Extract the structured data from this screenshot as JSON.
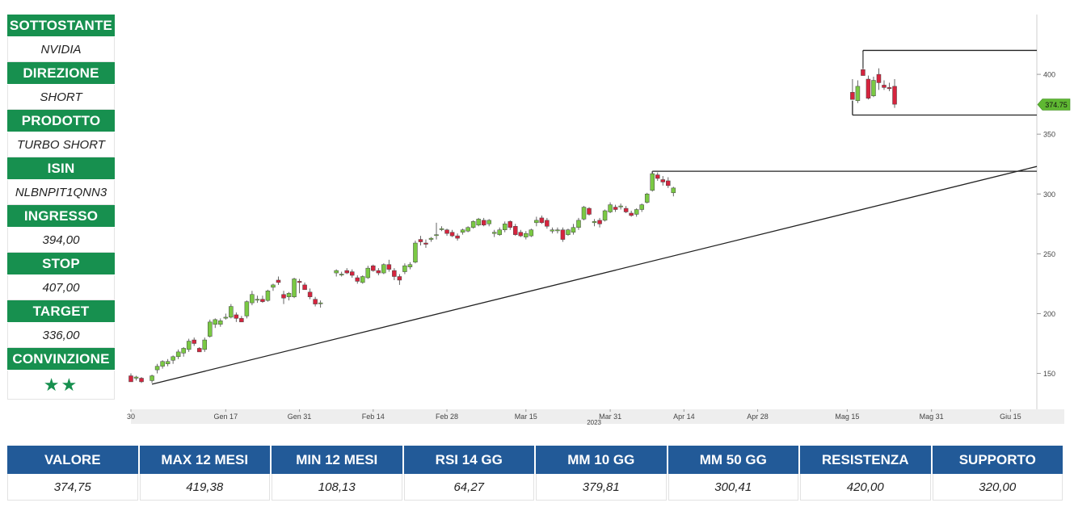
{
  "sidebar": [
    {
      "label": "SOTTOSTANTE",
      "value": "NVIDIA"
    },
    {
      "label": "DIREZIONE",
      "value": "SHORT"
    },
    {
      "label": "PRODOTTO",
      "value": "TURBO SHORT"
    },
    {
      "label": "ISIN",
      "value": "NLBNPIT1QNN3"
    },
    {
      "label": "INGRESSO",
      "value": "394,00"
    },
    {
      "label": "STOP",
      "value": "407,00"
    },
    {
      "label": "TARGET",
      "value": "336,00"
    },
    {
      "label": "CONVINZIONE",
      "value": "★★"
    }
  ],
  "stats": {
    "headers": [
      "VALORE",
      "MAX 12 MESI",
      "MIN 12 MESI",
      "RSI 14 GG",
      "MM 10 GG",
      "MM 50 GG",
      "RESISTENZA",
      "SUPPORTO"
    ],
    "values": [
      "374,75",
      "419,38",
      "108,13",
      "64,27",
      "379,81",
      "300,41",
      "420,00",
      "320,00"
    ]
  },
  "colors": {
    "up": "#7ac943",
    "down": "#d6243e",
    "green": "#17904f",
    "blue": "#225a98",
    "price_tag": "#5fb832"
  },
  "chart_data": {
    "type": "candlestick",
    "y_ticks": [
      150,
      200,
      250,
      300,
      350,
      400
    ],
    "ylim": [
      120,
      450
    ],
    "x_ticks": [
      {
        "label": "30",
        "day": 0
      },
      {
        "label": "Gen 17",
        "day": 18
      },
      {
        "label": "Gen 31",
        "day": 32
      },
      {
        "label": "Feb 14",
        "day": 46
      },
      {
        "label": "Feb 28",
        "day": 60
      },
      {
        "label": "Mar 15",
        "day": 75
      },
      {
        "label": "Mar 31",
        "day": 91
      },
      {
        "label": "Apr 14",
        "day": 105
      },
      {
        "label": "Apr 28",
        "day": 119
      },
      {
        "label": "Mag 15",
        "day": 136
      },
      {
        "label": "Mag 31",
        "day": 152
      },
      {
        "label": "Giu 15",
        "day": 167
      }
    ],
    "xlim": [
      0,
      172
    ],
    "year_label": "2023",
    "last_price": "374.75",
    "candles": [
      {
        "d": 0,
        "o": 148,
        "h": 150,
        "l": 143,
        "c": 143
      },
      {
        "d": 1,
        "o": 146,
        "h": 148,
        "l": 144,
        "c": 147
      },
      {
        "d": 2,
        "o": 146,
        "h": 147,
        "l": 142,
        "c": 143
      },
      {
        "d": 4,
        "o": 144,
        "h": 149,
        "l": 142,
        "c": 148
      },
      {
        "d": 5,
        "o": 153,
        "h": 158,
        "l": 150,
        "c": 156
      },
      {
        "d": 6,
        "o": 156,
        "h": 161,
        "l": 154,
        "c": 160
      },
      {
        "d": 7,
        "o": 158,
        "h": 162,
        "l": 156,
        "c": 160
      },
      {
        "d": 8,
        "o": 161,
        "h": 165,
        "l": 158,
        "c": 164
      },
      {
        "d": 9,
        "o": 164,
        "h": 170,
        "l": 162,
        "c": 168
      },
      {
        "d": 10,
        "o": 167,
        "h": 172,
        "l": 164,
        "c": 171
      },
      {
        "d": 11,
        "o": 170,
        "h": 179,
        "l": 168,
        "c": 177
      },
      {
        "d": 12,
        "o": 178,
        "h": 180,
        "l": 173,
        "c": 175
      },
      {
        "d": 13,
        "o": 171,
        "h": 172,
        "l": 168,
        "c": 168
      },
      {
        "d": 14,
        "o": 170,
        "h": 180,
        "l": 168,
        "c": 178
      },
      {
        "d": 15,
        "o": 181,
        "h": 195,
        "l": 180,
        "c": 193
      },
      {
        "d": 16,
        "o": 191,
        "h": 196,
        "l": 188,
        "c": 195
      },
      {
        "d": 17,
        "o": 191,
        "h": 196,
        "l": 189,
        "c": 194
      },
      {
        "d": 18,
        "o": 197,
        "h": 200,
        "l": 195,
        "c": 197
      },
      {
        "d": 19,
        "o": 197,
        "h": 208,
        "l": 196,
        "c": 206
      },
      {
        "d": 20,
        "o": 199,
        "h": 201,
        "l": 193,
        "c": 196
      },
      {
        "d": 21,
        "o": 196,
        "h": 198,
        "l": 193,
        "c": 193
      },
      {
        "d": 22,
        "o": 198,
        "h": 211,
        "l": 196,
        "c": 210
      },
      {
        "d": 23,
        "o": 209,
        "h": 219,
        "l": 207,
        "c": 216
      },
      {
        "d": 24,
        "o": 212,
        "h": 215,
        "l": 209,
        "c": 212
      },
      {
        "d": 25,
        "o": 212,
        "h": 215,
        "l": 209,
        "c": 210
      },
      {
        "d": 26,
        "o": 211,
        "h": 220,
        "l": 210,
        "c": 219
      },
      {
        "d": 27,
        "o": 222,
        "h": 225,
        "l": 219,
        "c": 224
      },
      {
        "d": 28,
        "o": 228,
        "h": 231,
        "l": 224,
        "c": 226
      },
      {
        "d": 29,
        "o": 216,
        "h": 219,
        "l": 208,
        "c": 213
      },
      {
        "d": 30,
        "o": 214,
        "h": 218,
        "l": 211,
        "c": 217
      },
      {
        "d": 31,
        "o": 214,
        "h": 230,
        "l": 213,
        "c": 229
      },
      {
        "d": 32,
        "o": 227,
        "h": 229,
        "l": 217,
        "c": 226
      },
      {
        "d": 33,
        "o": 224,
        "h": 226,
        "l": 220,
        "c": 220
      },
      {
        "d": 34,
        "o": 218,
        "h": 221,
        "l": 212,
        "c": 214
      },
      {
        "d": 35,
        "o": 212,
        "h": 214,
        "l": 206,
        "c": 208
      },
      {
        "d": 36,
        "o": 209,
        "h": 211,
        "l": 205,
        "c": 209
      },
      {
        "d": 39,
        "o": 234,
        "h": 237,
        "l": 231,
        "c": 236
      },
      {
        "d": 40,
        "o": 233,
        "h": 235,
        "l": 231,
        "c": 233
      },
      {
        "d": 41,
        "o": 236,
        "h": 238,
        "l": 233,
        "c": 234
      },
      {
        "d": 42,
        "o": 235,
        "h": 237,
        "l": 230,
        "c": 232
      },
      {
        "d": 43,
        "o": 230,
        "h": 232,
        "l": 225,
        "c": 227
      },
      {
        "d": 44,
        "o": 226,
        "h": 232,
        "l": 225,
        "c": 231
      },
      {
        "d": 45,
        "o": 230,
        "h": 240,
        "l": 229,
        "c": 238
      },
      {
        "d": 46,
        "o": 240,
        "h": 241,
        "l": 235,
        "c": 236
      },
      {
        "d": 47,
        "o": 236,
        "h": 238,
        "l": 232,
        "c": 234
      },
      {
        "d": 48,
        "o": 234,
        "h": 242,
        "l": 233,
        "c": 241
      },
      {
        "d": 49,
        "o": 241,
        "h": 245,
        "l": 235,
        "c": 237
      },
      {
        "d": 50,
        "o": 236,
        "h": 238,
        "l": 228,
        "c": 231
      },
      {
        "d": 51,
        "o": 231,
        "h": 233,
        "l": 224,
        "c": 228
      },
      {
        "d": 52,
        "o": 235,
        "h": 242,
        "l": 233,
        "c": 240
      },
      {
        "d": 53,
        "o": 239,
        "h": 243,
        "l": 237,
        "c": 241
      },
      {
        "d": 54,
        "o": 243,
        "h": 261,
        "l": 242,
        "c": 259
      },
      {
        "d": 55,
        "o": 262,
        "h": 265,
        "l": 257,
        "c": 260
      },
      {
        "d": 56,
        "o": 259,
        "h": 262,
        "l": 255,
        "c": 258
      },
      {
        "d": 57,
        "o": 262,
        "h": 264,
        "l": 260,
        "c": 263
      },
      {
        "d": 58,
        "o": 266,
        "h": 276,
        "l": 262,
        "c": 266
      },
      {
        "d": 59,
        "o": 271,
        "h": 273,
        "l": 269,
        "c": 271
      },
      {
        "d": 60,
        "o": 270,
        "h": 271,
        "l": 265,
        "c": 267
      },
      {
        "d": 61,
        "o": 268,
        "h": 270,
        "l": 264,
        "c": 265
      },
      {
        "d": 62,
        "o": 265,
        "h": 267,
        "l": 261,
        "c": 263
      },
      {
        "d": 63,
        "o": 268,
        "h": 271,
        "l": 266,
        "c": 270
      },
      {
        "d": 64,
        "o": 269,
        "h": 273,
        "l": 268,
        "c": 272
      },
      {
        "d": 65,
        "o": 272,
        "h": 278,
        "l": 271,
        "c": 277
      },
      {
        "d": 66,
        "o": 274,
        "h": 280,
        "l": 273,
        "c": 279
      },
      {
        "d": 67,
        "o": 278,
        "h": 280,
        "l": 273,
        "c": 274
      },
      {
        "d": 68,
        "o": 275,
        "h": 279,
        "l": 273,
        "c": 278
      },
      {
        "d": 69,
        "o": 267,
        "h": 270,
        "l": 264,
        "c": 268
      },
      {
        "d": 70,
        "o": 266,
        "h": 272,
        "l": 265,
        "c": 270
      },
      {
        "d": 71,
        "o": 270,
        "h": 277,
        "l": 268,
        "c": 275
      },
      {
        "d": 72,
        "o": 277,
        "h": 278,
        "l": 270,
        "c": 272
      },
      {
        "d": 73,
        "o": 273,
        "h": 275,
        "l": 265,
        "c": 266
      },
      {
        "d": 74,
        "o": 268,
        "h": 270,
        "l": 264,
        "c": 265
      },
      {
        "d": 75,
        "o": 264,
        "h": 269,
        "l": 262,
        "c": 267
      },
      {
        "d": 76,
        "o": 265,
        "h": 271,
        "l": 264,
        "c": 270
      },
      {
        "d": 77,
        "o": 276,
        "h": 281,
        "l": 273,
        "c": 278
      },
      {
        "d": 78,
        "o": 280,
        "h": 282,
        "l": 275,
        "c": 276
      },
      {
        "d": 79,
        "o": 278,
        "h": 280,
        "l": 271,
        "c": 273
      },
      {
        "d": 80,
        "o": 269,
        "h": 272,
        "l": 267,
        "c": 270
      },
      {
        "d": 81,
        "o": 270,
        "h": 272,
        "l": 267,
        "c": 270
      },
      {
        "d": 82,
        "o": 270,
        "h": 272,
        "l": 260,
        "c": 262
      },
      {
        "d": 83,
        "o": 266,
        "h": 271,
        "l": 265,
        "c": 270
      },
      {
        "d": 84,
        "o": 268,
        "h": 275,
        "l": 266,
        "c": 272
      },
      {
        "d": 85,
        "o": 272,
        "h": 280,
        "l": 270,
        "c": 278
      },
      {
        "d": 86,
        "o": 279,
        "h": 290,
        "l": 278,
        "c": 289
      },
      {
        "d": 87,
        "o": 288,
        "h": 289,
        "l": 282,
        "c": 283
      },
      {
        "d": 88,
        "o": 276,
        "h": 279,
        "l": 273,
        "c": 277
      },
      {
        "d": 89,
        "o": 278,
        "h": 280,
        "l": 272,
        "c": 275
      },
      {
        "d": 90,
        "o": 278,
        "h": 287,
        "l": 277,
        "c": 286
      },
      {
        "d": 91,
        "o": 285,
        "h": 293,
        "l": 284,
        "c": 291
      },
      {
        "d": 92,
        "o": 289,
        "h": 291,
        "l": 285,
        "c": 287
      },
      {
        "d": 93,
        "o": 290,
        "h": 292,
        "l": 287,
        "c": 290
      },
      {
        "d": 94,
        "o": 288,
        "h": 290,
        "l": 284,
        "c": 285
      },
      {
        "d": 95,
        "o": 284,
        "h": 286,
        "l": 281,
        "c": 282
      },
      {
        "d": 96,
        "o": 283,
        "h": 288,
        "l": 281,
        "c": 287
      },
      {
        "d": 97,
        "o": 287,
        "h": 292,
        "l": 285,
        "c": 291
      },
      {
        "d": 98,
        "o": 293,
        "h": 301,
        "l": 292,
        "c": 300
      },
      {
        "d": 99,
        "o": 303,
        "h": 319,
        "l": 302,
        "c": 317
      },
      {
        "d": 100,
        "o": 316,
        "h": 318,
        "l": 311,
        "c": 313
      },
      {
        "d": 101,
        "o": 312,
        "h": 315,
        "l": 307,
        "c": 310
      },
      {
        "d": 102,
        "o": 311,
        "h": 314,
        "l": 305,
        "c": 307
      },
      {
        "d": 103,
        "o": 301,
        "h": 306,
        "l": 298,
        "c": 305
      },
      {
        "d": 137,
        "o": 385,
        "h": 396,
        "l": 379,
        "c": 379
      },
      {
        "d": 138,
        "o": 378,
        "h": 395,
        "l": 376,
        "c": 390
      },
      {
        "d": 139,
        "o": 404,
        "h": 419,
        "l": 399,
        "c": 399
      },
      {
        "d": 140,
        "o": 396,
        "h": 399,
        "l": 379,
        "c": 380
      },
      {
        "d": 141,
        "o": 382,
        "h": 398,
        "l": 381,
        "c": 395
      },
      {
        "d": 142,
        "o": 400,
        "h": 405,
        "l": 387,
        "c": 393
      },
      {
        "d": 143,
        "o": 391,
        "h": 395,
        "l": 387,
        "c": 389
      },
      {
        "d": 144,
        "o": 389,
        "h": 393,
        "l": 386,
        "c": 388
      },
      {
        "d": 145,
        "o": 390,
        "h": 396,
        "l": 372,
        "c": 375
      }
    ],
    "lines": [
      {
        "points": [
          [
            4,
            141
          ],
          [
            172,
            323
          ]
        ]
      },
      {
        "points": [
          [
            99,
            319
          ],
          [
            172,
            319
          ]
        ]
      },
      {
        "points": [
          [
            139,
            420
          ],
          [
            172,
            420
          ]
        ]
      },
      {
        "points": [
          [
            137,
            366
          ],
          [
            172,
            366
          ]
        ]
      }
    ]
  }
}
